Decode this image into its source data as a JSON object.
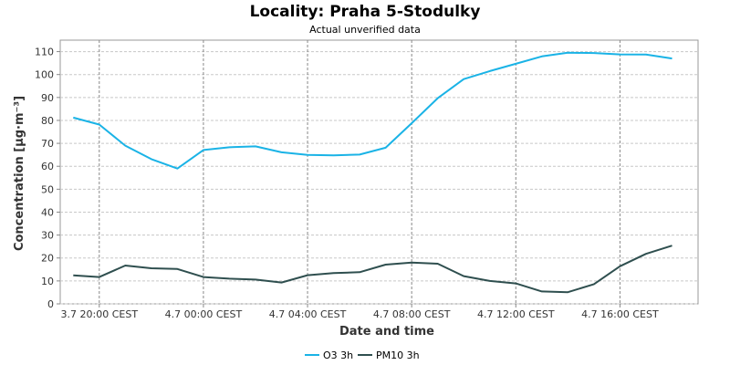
{
  "chart_data": {
    "type": "line",
    "title": "Locality: Praha 5-Stodulky",
    "subtitle": "Actual unverified data",
    "xlabel": "Date and time",
    "ylabel": "Concentration [µg·m⁻³]",
    "ylim": [
      0,
      115
    ],
    "yticks": [
      0,
      10,
      20,
      30,
      40,
      50,
      60,
      70,
      80,
      90,
      100,
      110
    ],
    "x_hours": [
      -1,
      0,
      1,
      2,
      3,
      4,
      5,
      6,
      7,
      8,
      9,
      10,
      11,
      12,
      13,
      14,
      15,
      16,
      17,
      18,
      19,
      20,
      21,
      22
    ],
    "xticks": [
      {
        "hour": 0,
        "label": "3.7 20:00 CEST"
      },
      {
        "hour": 4,
        "label": "4.7 00:00 CEST"
      },
      {
        "hour": 8,
        "label": "4.7 04:00 CEST"
      },
      {
        "hour": 12,
        "label": "4.7 08:00 CEST"
      },
      {
        "hour": 16,
        "label": "4.7 12:00 CEST"
      },
      {
        "hour": 20,
        "label": "4.7 16:00 CEST"
      }
    ],
    "xlim": [
      -1.5,
      23
    ],
    "grid": true,
    "legend_position": "bottom",
    "series": [
      {
        "name": "O3 3h",
        "color": "#1ab3e6",
        "values": [
          81.2,
          78.2,
          69.0,
          63.1,
          59.0,
          67.1,
          68.3,
          68.7,
          66.1,
          65.0,
          64.8,
          65.1,
          68.1,
          78.8,
          89.7,
          98.0,
          101.5,
          104.7,
          107.9,
          109.5,
          109.4,
          108.8,
          108.7,
          107.0
        ]
      },
      {
        "name": "PM10 3h",
        "color": "#2f4f4f",
        "values": [
          12.4,
          11.7,
          16.7,
          15.5,
          15.2,
          11.7,
          11.0,
          10.6,
          9.3,
          12.5,
          13.4,
          13.8,
          17.1,
          18.0,
          17.5,
          12.1,
          10.0,
          8.9,
          5.4,
          5.1,
          8.6,
          16.4,
          21.8,
          25.4
        ]
      }
    ]
  }
}
